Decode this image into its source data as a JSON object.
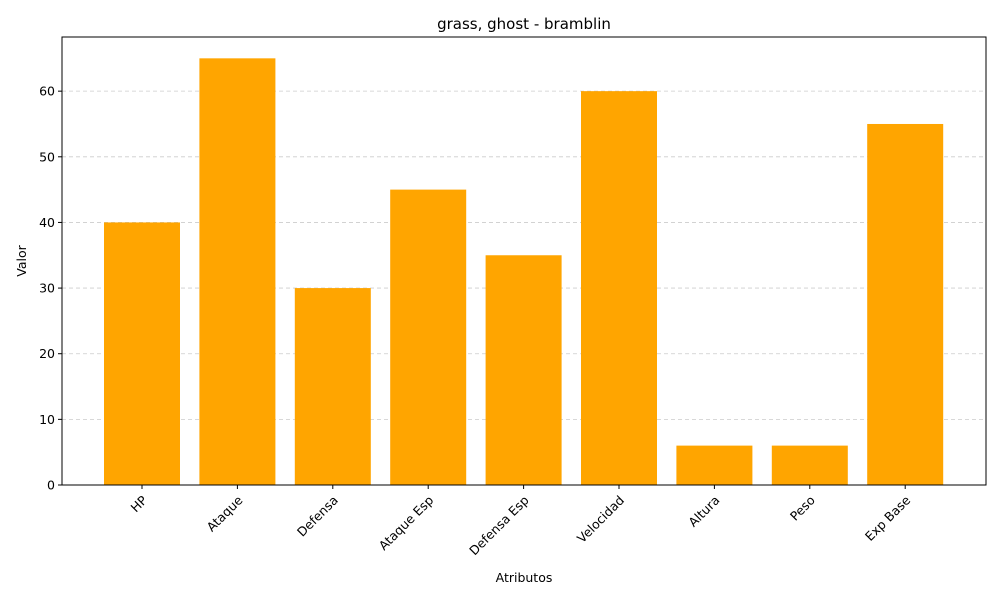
{
  "chart_data": {
    "type": "bar",
    "title": "grass, ghost - bramblin",
    "xlabel": "Atributos",
    "ylabel": "Valor",
    "categories": [
      "HP",
      "Ataque",
      "Defensa",
      "Ataque Esp",
      "Defensa Esp",
      "Velocidad",
      "Altura",
      "Peso",
      "Exp Base"
    ],
    "values": [
      40,
      65,
      30,
      45,
      35,
      60,
      6,
      6,
      55
    ],
    "ylim": [
      0,
      68.25
    ],
    "yticks": [
      0,
      10,
      20,
      30,
      40,
      50,
      60
    ],
    "grid": "y-dashed",
    "bar_color": "#ffa500"
  }
}
